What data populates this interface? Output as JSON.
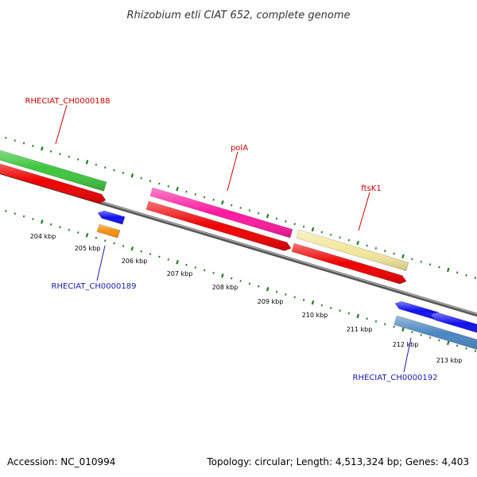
{
  "title": "Rhizobium etli CIAT 652, complete genome",
  "footer": {
    "accession": "Accession: NC_010994",
    "summary": "Topology: circular; Length: 4,513,324 bp; Genes: 4,403"
  },
  "colors": {
    "tick": "#1e7d1e",
    "backbone": "#7a7a7a",
    "label_red": "#cc0000",
    "label_blue": "#1a1aaa"
  },
  "ruler": {
    "labels": [
      "204 kbp",
      "205 kbp",
      "206 kbp",
      "207 kbp",
      "208 kbp",
      "209 kbp",
      "210 kbp",
      "211 kbp",
      "212 kbp",
      "213 kbp"
    ]
  },
  "genes_labels": {
    "rheciat_ch0000188": "RHECIAT_CH0000188",
    "pola": "polA",
    "ftsk1": "ftsK1",
    "rheciat_ch0000189": "RHECIAT_CH0000189",
    "rheciat_ch0000192": "RHECIAT_CH0000192"
  },
  "features": [
    {
      "id": "green-top",
      "color": "#3ec63e"
    },
    {
      "id": "red-top-1",
      "color": "#ee0000"
    },
    {
      "id": "pink-pola",
      "color": "#ff1aa0"
    },
    {
      "id": "red-pola",
      "color": "#ee0000"
    },
    {
      "id": "yellow-ftsk1",
      "color": "#f2e69a"
    },
    {
      "id": "red-ftsk1",
      "color": "#ee0000"
    },
    {
      "id": "blue-189",
      "color": "#1010ee"
    },
    {
      "id": "orange-189",
      "color": "#f5900f"
    },
    {
      "id": "blue-192-a",
      "color": "#1010ee"
    },
    {
      "id": "blue-192-b",
      "color": "#1010ee"
    },
    {
      "id": "steelblue-192",
      "color": "#4a85c2"
    }
  ]
}
